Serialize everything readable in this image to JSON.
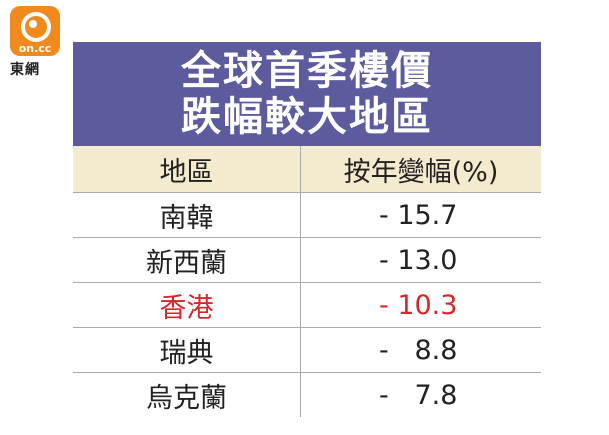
{
  "logo": {
    "mark": "on.cc",
    "name": "東網"
  },
  "title_lines": [
    "全球首季樓價",
    "跌幅較大地區"
  ],
  "table": {
    "header": [
      "地區",
      "按年變幅(%)"
    ],
    "rows": [
      [
        "南韓",
        "- 15.7"
      ],
      [
        "新西蘭",
        "- 13.0"
      ],
      [
        "香港",
        "- 10.3"
      ],
      [
        "瑞典",
        "-   8.8"
      ],
      [
        "烏克蘭",
        "-   7.8"
      ]
    ]
  }
}
